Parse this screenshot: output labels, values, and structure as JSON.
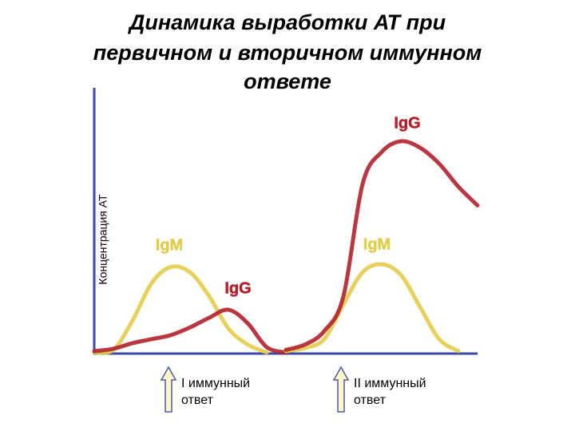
{
  "chart_data": {
    "type": "line",
    "title": [
      "Динамика выработки АТ при",
      "первичном и вторичном иммунном",
      "ответе"
    ],
    "y_label": "Концентрация АТ",
    "x": [
      0,
      5,
      10,
      15,
      20,
      25,
      30,
      35,
      40,
      45,
      50,
      55,
      60,
      65,
      70,
      75,
      80,
      85,
      90,
      95,
      100
    ],
    "xlim": [
      0,
      100
    ],
    "ylim": [
      0,
      100
    ],
    "series": [
      {
        "name": "IgM",
        "color": "#e2cc4a",
        "values": [
          1,
          2,
          13,
          27,
          33,
          31,
          22,
          10,
          4,
          1,
          null,
          null,
          null,
          null,
          null,
          null,
          null,
          null,
          null,
          null,
          null
        ]
      },
      {
        "name": "IgG",
        "color": "#b3202c",
        "values": [
          1.5,
          2.4,
          4.5,
          6,
          7.5,
          10.4,
          14,
          17,
          12,
          3,
          1,
          null,
          null,
          null,
          null,
          null,
          null,
          null,
          null,
          null,
          null
        ]
      },
      {
        "name": "IgM",
        "color": "#e2cc4a",
        "values": [
          null,
          null,
          null,
          null,
          null,
          null,
          null,
          null,
          null,
          null,
          1.5,
          2.7,
          6,
          19,
          31,
          34,
          30,
          18,
          6,
          1.5,
          null
        ]
      },
      {
        "name": "IgG",
        "color": "#b3202c",
        "values": [
          null,
          null,
          null,
          null,
          null,
          null,
          null,
          null,
          null,
          null,
          2,
          4,
          9,
          22,
          64,
          76,
          80,
          77.6,
          71.6,
          63,
          56
        ]
      }
    ],
    "annotations": [
      {
        "x": 10,
        "lines": [
          "I иммунный",
          "ответ"
        ]
      },
      {
        "x": 55,
        "lines": [
          "II иммунный",
          "ответ"
        ]
      }
    ]
  }
}
